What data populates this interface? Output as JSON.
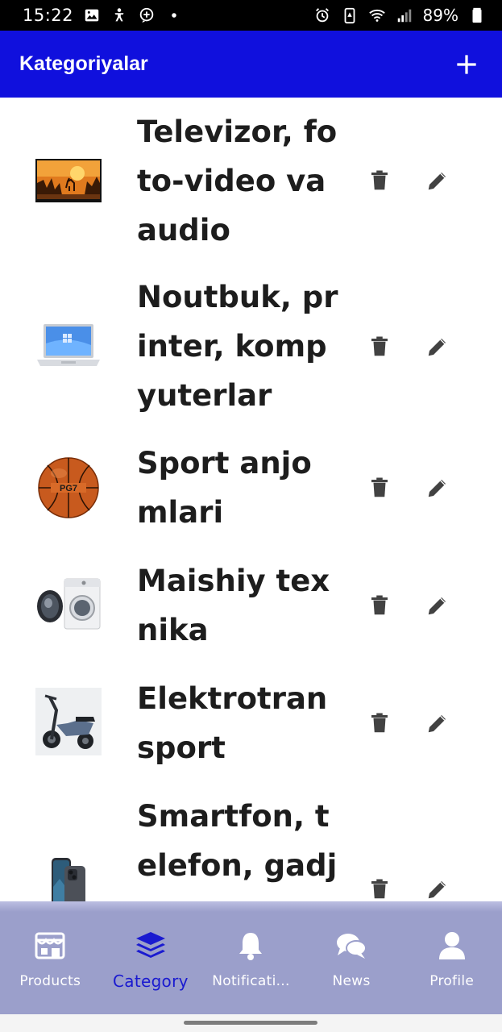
{
  "status_bar": {
    "time": "15:22",
    "battery": "89%",
    "left_icons": [
      "image-icon",
      "accessibility-icon",
      "messenger-icon",
      "dot-icon"
    ],
    "right_icons": [
      "alarm-icon",
      "battery-saver-icon",
      "wifi-icon",
      "signal-icon",
      "battery-icon"
    ]
  },
  "app_bar": {
    "title": "Kategoriyalar",
    "background": "#1010dd",
    "add_icon": "plus-icon"
  },
  "categories": [
    {
      "name": "Televizor, foto-video va audio",
      "thumb": "tv-landscape-image"
    },
    {
      "name": "Noutbuk, printer, kompyuterlar",
      "thumb": "laptop-image"
    },
    {
      "name": "Sport anjomlari",
      "thumb": "basketball-image"
    },
    {
      "name": "Maishiy texnika",
      "thumb": "washing-machine-image"
    },
    {
      "name": "Elektrotransport",
      "thumb": "electric-scooter-image"
    },
    {
      "name": "Smartfon, telefon, gadjetlar",
      "thumb": "smartphone-image"
    }
  ],
  "row_actions": {
    "delete_icon": "trash-icon",
    "edit_icon": "pencil-icon"
  },
  "bottom_nav": {
    "items": [
      {
        "label": "Products",
        "icon": "store-icon",
        "active": false
      },
      {
        "label": "Category",
        "icon": "layers-icon",
        "active": true
      },
      {
        "label": "Notificati...",
        "icon": "bell-icon",
        "active": false
      },
      {
        "label": "News",
        "icon": "chat-bubbles-icon",
        "active": false
      },
      {
        "label": "Profile",
        "icon": "user-icon",
        "active": false
      }
    ],
    "active_color": "#1a1ad0",
    "background": "#9b9fcb"
  }
}
